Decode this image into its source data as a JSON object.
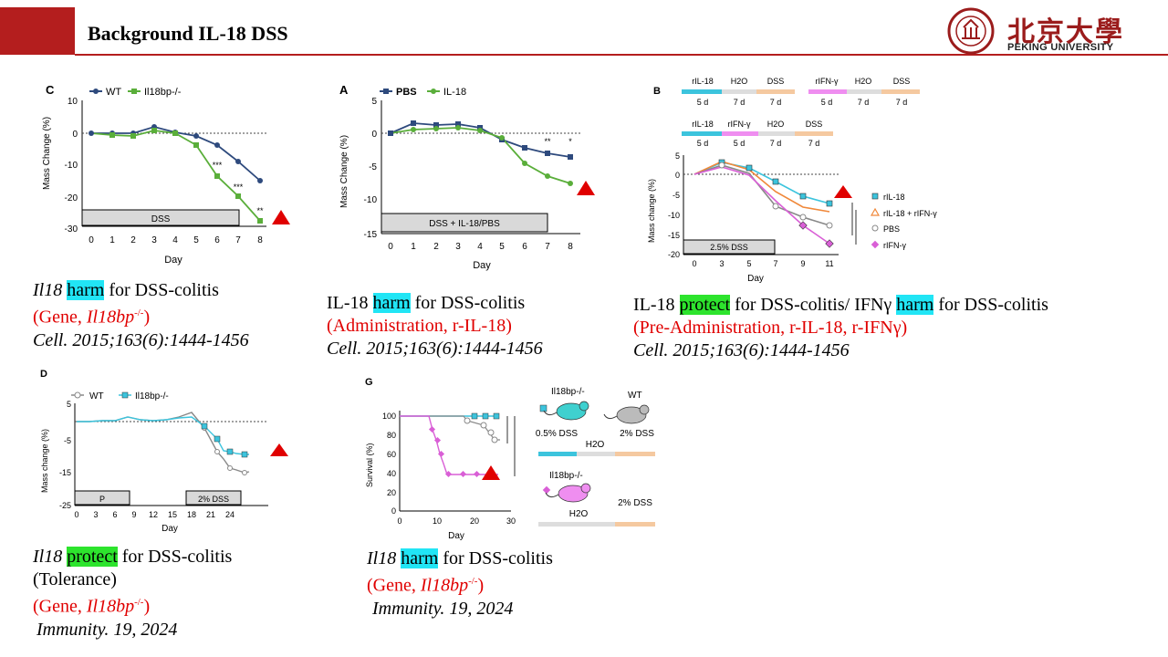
{
  "header": {
    "title": "Background IL-18 DSS",
    "logo_cn": "北京大學",
    "logo_en": "PEKING UNIVERSITY"
  },
  "panels": {
    "c": {
      "label": "C",
      "legend": [
        "WT",
        "Il18bp-/-"
      ],
      "ylabel": "Mass Change (%)",
      "xlabel": "Day",
      "yticks": [
        "10",
        "0",
        "-10",
        "-20",
        "-30"
      ],
      "xticks": [
        "0",
        "1",
        "2",
        "3",
        "4",
        "5",
        "6",
        "7",
        "8"
      ],
      "bar": "DSS",
      "sig": [
        "***",
        "***",
        "**"
      ],
      "caption": {
        "gene": "Il18",
        "verb": "harm",
        "rest": " for DSS-colitis",
        "paren_open": "(Gene, ",
        "gene2": "Il18bp",
        "sup": "-/-",
        "paren_close": ")",
        "ref": "Cell. 2015;163(6):1444-1456"
      }
    },
    "a": {
      "label": "A",
      "legend": [
        "PBS",
        "IL-18"
      ],
      "ylabel": "Mass Change (%)",
      "xlabel": "Day",
      "yticks": [
        "5",
        "0",
        "-5",
        "-10",
        "-15"
      ],
      "xticks": [
        "0",
        "1",
        "2",
        "3",
        "4",
        "5",
        "6",
        "7",
        "8"
      ],
      "bar": "DSS + IL-18/PBS",
      "sig": [
        "**",
        "*"
      ],
      "caption": {
        "prefix": "IL-18 ",
        "verb": "harm",
        "rest": " for DSS-colitis",
        "paren": "(Administration, r-IL-18)",
        "ref": "Cell. 2015;163(6):1444-1456"
      }
    },
    "b": {
      "label": "B",
      "row1": [
        {
          "t": "rIL-18",
          "d": "5 d"
        },
        {
          "t": "H2O",
          "d": "7 d"
        },
        {
          "t": "DSS",
          "d": "7 d"
        },
        {
          "t": "rIFN-γ",
          "d": "5 d"
        },
        {
          "t": "H2O",
          "d": "7 d"
        },
        {
          "t": "DSS",
          "d": "7 d"
        }
      ],
      "row2": [
        {
          "t": "rIL-18",
          "d": "5 d"
        },
        {
          "t": "rIFN-γ",
          "d": "5 d"
        },
        {
          "t": "H2O",
          "d": "7 d"
        },
        {
          "t": "DSS",
          "d": "7 d"
        }
      ],
      "ylabel": "Mass change (%)",
      "xlabel": "Day",
      "yticks": [
        "5",
        "0",
        "-5",
        "-10",
        "-15",
        "-20"
      ],
      "xticks": [
        "0",
        "3",
        "5",
        "7",
        "9",
        "11"
      ],
      "bar": "2.5% DSS",
      "legend": [
        "rIL-18",
        "rIL-18 + rIFN-γ",
        "PBS",
        "rIFN-γ"
      ],
      "caption": {
        "prefix": "IL-18 ",
        "verb1": "protect",
        "mid": " for DSS-colitis/ IFNγ ",
        "verb2": "harm",
        "rest": " for DSS-colitis",
        "paren": "(Pre-Administration, r-IL-18, r-IFNγ)",
        "ref": "Cell. 2015;163(6):1444-1456"
      }
    },
    "d": {
      "label": "D",
      "legend": [
        "WT",
        "Il18bp-/-"
      ],
      "ylabel": "Mass change (%)",
      "xlabel": "Day",
      "yticks": [
        "5",
        "-5",
        "-15",
        "-25"
      ],
      "xticks": [
        "0",
        "3",
        "6",
        "9",
        "12",
        "15",
        "18",
        "21",
        "24"
      ],
      "bar1": "P",
      "bar2": "2% DSS",
      "caption": {
        "gene": "Il18",
        "verb": "protect",
        "rest": " for DSS-colitis",
        "line2": "(Tolerance)",
        "paren_open": "(Gene, ",
        "gene2": "Il18bp",
        "sup": "-/-",
        "paren_close": ")",
        "ref": "Immunity. 19, 2024"
      }
    },
    "g": {
      "label": "G",
      "ylabel": "Survival (%)",
      "xlabel": "Day",
      "yticks": [
        "100",
        "80",
        "60",
        "40",
        "20",
        "0"
      ],
      "xticks": [
        "0",
        "10",
        "20",
        "30"
      ],
      "top_ko": "Il18bp-/-",
      "top_wt": "WT",
      "dss05": "0.5% DSS",
      "h2o": "H2O",
      "dss2": "2% DSS",
      "bottom_ko": "Il18bp-/-",
      "h2o_b": "H2O",
      "dss2_b": "2% DSS",
      "caption": {
        "gene": "Il18",
        "verb": "harm",
        "rest": " for DSS-colitis",
        "paren_open": "(Gene, ",
        "gene2": "Il18bp",
        "sup": "-/-",
        "paren_close": ")",
        "ref": "Immunity. 19, 2024"
      }
    }
  },
  "colors": {
    "accent": "#b41e1e",
    "wt_blue": "#2e4a7d",
    "ko_green": "#5aae3a",
    "cyan": "#3cc4dd",
    "orange": "#f0883a",
    "pink": "#d95fd6",
    "warn": "#e00000"
  }
}
